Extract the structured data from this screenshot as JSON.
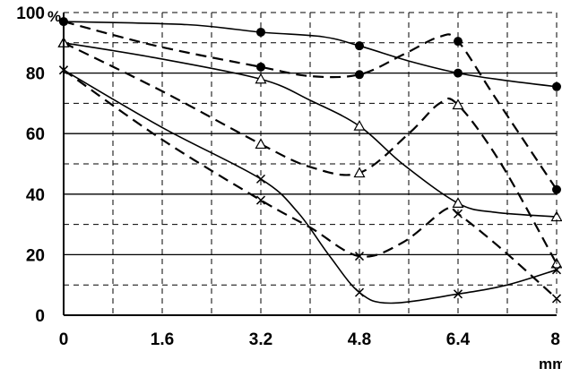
{
  "chart_data": {
    "type": "line",
    "x_unit": "mm",
    "y_unit": "%",
    "xlim": [
      0,
      8
    ],
    "ylim": [
      0,
      100
    ],
    "x_ticks": [
      {
        "value": 0,
        "label": "0"
      },
      {
        "value": 1.6,
        "label": "1.6"
      },
      {
        "value": 3.2,
        "label": "3.2"
      },
      {
        "value": 4.8,
        "label": "4.8"
      },
      {
        "value": 6.4,
        "label": "6.4"
      },
      {
        "value": 8,
        "label": "8"
      }
    ],
    "y_ticks": [
      {
        "value": 0,
        "label": "0"
      },
      {
        "value": 20,
        "label": "20"
      },
      {
        "value": 40,
        "label": "40"
      },
      {
        "value": 60,
        "label": "60"
      },
      {
        "value": 80,
        "label": "80"
      },
      {
        "value": 100,
        "label": "100"
      }
    ],
    "grid": true,
    "series": [
      {
        "marker": "dot",
        "style": "solid",
        "points": [
          [
            0,
            97
          ],
          [
            3.2,
            93.5
          ],
          [
            4.8,
            89
          ],
          [
            6.4,
            80
          ],
          [
            8,
            75.5
          ]
        ],
        "curve": [
          [
            0,
            97
          ],
          [
            2,
            96
          ],
          [
            3.2,
            93.5
          ],
          [
            4.2,
            92
          ],
          [
            4.8,
            89
          ],
          [
            5.6,
            84
          ],
          [
            6.4,
            80
          ],
          [
            7.2,
            77.5
          ],
          [
            8,
            75.5
          ]
        ]
      },
      {
        "marker": "dot",
        "style": "dashed",
        "points": [
          [
            0,
            97
          ],
          [
            3.2,
            82
          ],
          [
            4.8,
            79.5
          ],
          [
            6.4,
            90.5
          ],
          [
            8,
            41.5
          ]
        ],
        "curve": [
          [
            0,
            97
          ],
          [
            1.5,
            89
          ],
          [
            3.2,
            82
          ],
          [
            4,
            79
          ],
          [
            4.8,
            79.5
          ],
          [
            5.5,
            86
          ],
          [
            6.1,
            92
          ],
          [
            6.4,
            90.5
          ],
          [
            7,
            72
          ],
          [
            8,
            41.5
          ]
        ]
      },
      {
        "marker": "triangle",
        "style": "solid",
        "points": [
          [
            0,
            90
          ],
          [
            3.2,
            78
          ],
          [
            4.8,
            62.5
          ],
          [
            6.4,
            37
          ],
          [
            8,
            32.5
          ]
        ],
        "curve": [
          [
            0,
            90
          ],
          [
            1.5,
            85
          ],
          [
            3.2,
            78
          ],
          [
            4,
            71
          ],
          [
            4.8,
            62.5
          ],
          [
            5.5,
            50
          ],
          [
            6.4,
            37
          ],
          [
            7,
            34
          ],
          [
            8,
            32.5
          ]
        ]
      },
      {
        "marker": "triangle",
        "style": "dashed",
        "points": [
          [
            0,
            90
          ],
          [
            3.2,
            56.5
          ],
          [
            4.8,
            47
          ],
          [
            6.4,
            69.5
          ],
          [
            8,
            17
          ]
        ],
        "curve": [
          [
            0,
            90
          ],
          [
            1.6,
            74
          ],
          [
            3.2,
            56.5
          ],
          [
            4,
            49
          ],
          [
            4.8,
            47
          ],
          [
            5.6,
            60
          ],
          [
            6.1,
            70
          ],
          [
            6.4,
            69.5
          ],
          [
            7.1,
            50
          ],
          [
            8,
            17
          ]
        ]
      },
      {
        "marker": "cross",
        "style": "solid",
        "points": [
          [
            0,
            81
          ],
          [
            3.2,
            45
          ],
          [
            4.8,
            7.5
          ],
          [
            6.4,
            7
          ],
          [
            8,
            15
          ]
        ],
        "curve": [
          [
            0,
            81
          ],
          [
            1.6,
            62
          ],
          [
            3.2,
            45
          ],
          [
            3.8,
            34
          ],
          [
            4.3,
            20
          ],
          [
            4.8,
            7.5
          ],
          [
            5.3,
            4
          ],
          [
            6.4,
            7
          ],
          [
            7.2,
            10
          ],
          [
            8,
            15
          ]
        ]
      },
      {
        "marker": "cross",
        "style": "dashed",
        "points": [
          [
            0,
            81
          ],
          [
            3.2,
            38
          ],
          [
            4.8,
            19.5
          ],
          [
            6.4,
            33.5
          ],
          [
            8,
            5.5
          ]
        ],
        "curve": [
          [
            0,
            81
          ],
          [
            1.6,
            58
          ],
          [
            3.2,
            38
          ],
          [
            4,
            29
          ],
          [
            4.8,
            19.5
          ],
          [
            5.5,
            24
          ],
          [
            6.2,
            35
          ],
          [
            6.4,
            33.5
          ],
          [
            7.1,
            22
          ],
          [
            8,
            5.5
          ]
        ]
      }
    ]
  }
}
